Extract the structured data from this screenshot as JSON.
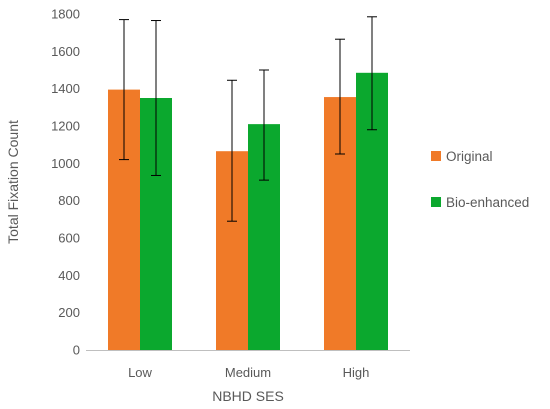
{
  "chart_data": {
    "type": "bar",
    "title": "",
    "xlabel": "NBHD SES",
    "ylabel": "Total Fixation Count",
    "categories": [
      "Low",
      "Medium",
      "High"
    ],
    "ylim": [
      0,
      1800
    ],
    "yticks": [
      0,
      200,
      400,
      600,
      800,
      1000,
      1200,
      1400,
      1600,
      1800
    ],
    "grid": false,
    "legend_position": "right",
    "error_bars": true,
    "series": [
      {
        "name": "Original",
        "color": "#F07A28",
        "values": [
          1395,
          1065,
          1355
        ],
        "error_low": [
          1020,
          690,
          1050
        ],
        "error_high": [
          1770,
          1445,
          1665
        ]
      },
      {
        "name": "Bio-enhanced",
        "color": "#0BA82E",
        "values": [
          1350,
          1210,
          1485
        ],
        "error_low": [
          935,
          910,
          1180
        ],
        "error_high": [
          1765,
          1500,
          1785
        ]
      }
    ]
  }
}
